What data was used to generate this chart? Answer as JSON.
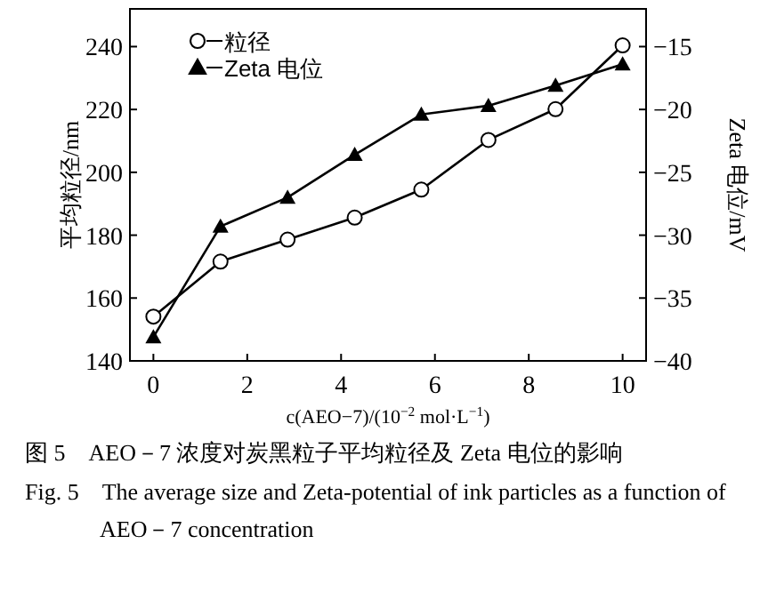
{
  "chart_data": {
    "type": "line",
    "xlabel": "c(AEO−7)/(10$^{−2}$ mol·L$^{−1}$)",
    "ylabel": "平均粒径/nm",
    "y2label": "Zeta 电位/mV",
    "x": [
      0,
      1.43,
      2.86,
      4.29,
      5.71,
      7.14,
      8.57,
      10
    ],
    "series": [
      {
        "name": "粒径",
        "color": "#000000",
        "marker": "circle",
        "values": [
          154.1,
          171.6,
          178.6,
          185.6,
          194.5,
          210.3,
          220.1,
          240.4
        ]
      },
      {
        "name": "Zeta 电位",
        "color": "#000000",
        "marker": "triangle",
        "axis": "y2",
        "values": [
          -38.1,
          -29.3,
          -27.0,
          -23.6,
          -20.4,
          -19.7,
          -18.1,
          -16.4
        ]
      }
    ],
    "xlim": [
      -0.5,
      10.5
    ],
    "xticks": [
      0,
      2,
      4,
      6,
      8,
      10
    ],
    "ylim": [
      140,
      252
    ],
    "yticks": [
      140,
      160,
      180,
      200,
      220,
      240
    ],
    "y2lim": [
      -40,
      -12
    ],
    "y2ticks": [
      -40,
      -35,
      -30,
      -25,
      -20,
      -15
    ],
    "grid": false,
    "legend": "top left",
    "line_style": "solid",
    "annotations": [
      "图 5　AEO－7 浓度对炭黑粒子平均粒径及 Zeta 电位的影响",
      "Fig. 5　The average size and Zeta-potential of ink particles as a function of AEO－7 concentration"
    ]
  }
}
